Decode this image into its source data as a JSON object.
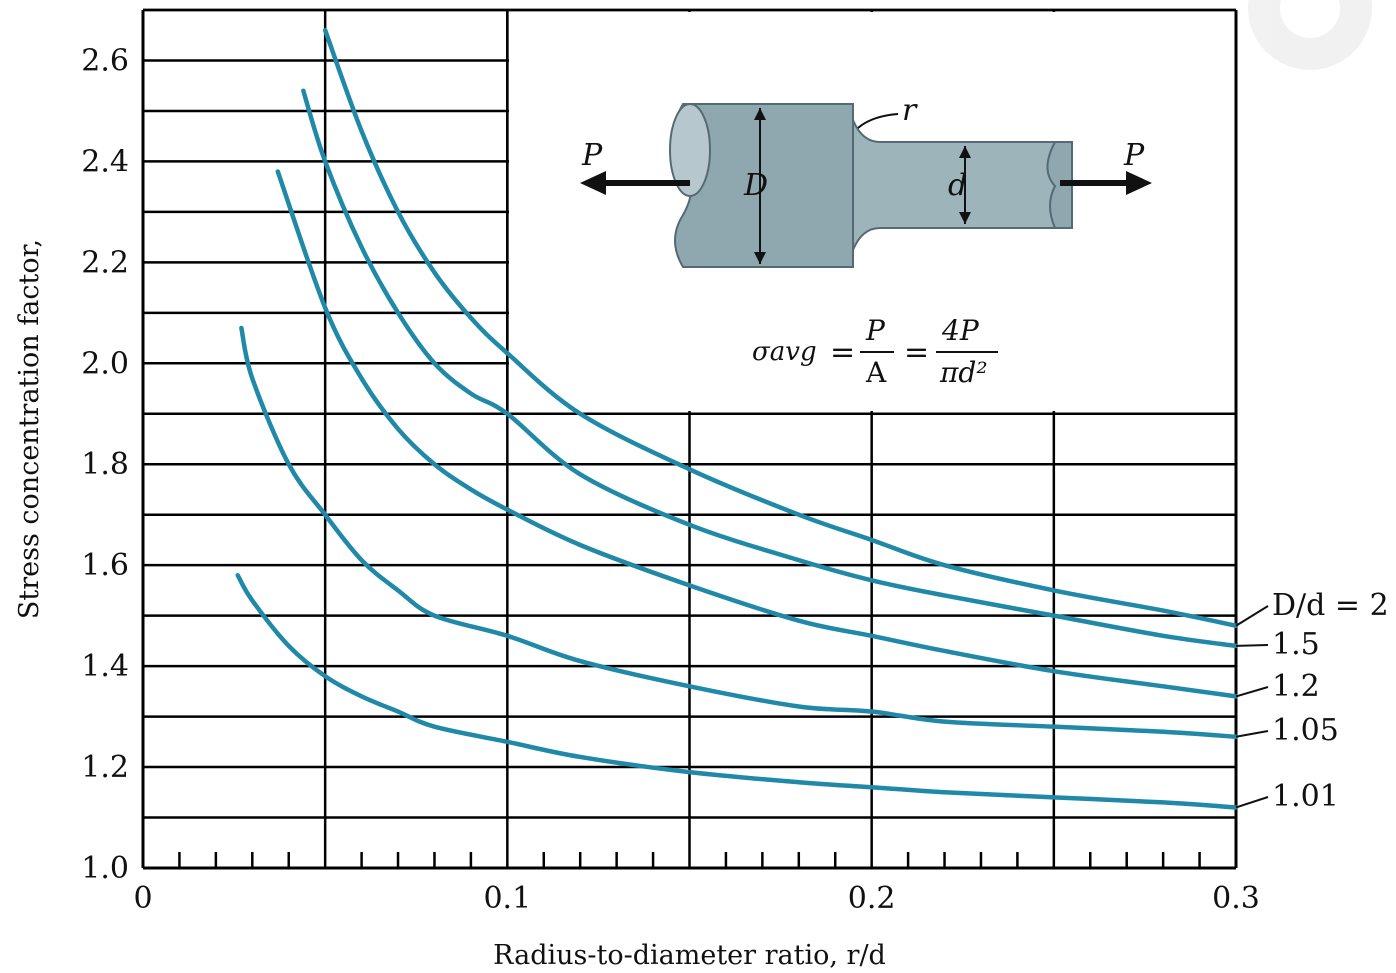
{
  "chart_data": {
    "type": "line",
    "xlabel": "Radius-to-diameter ratio, r/d",
    "ylabel": "Stress concentration factor,",
    "xlim": [
      0,
      0.3
    ],
    "ylim": [
      1.0,
      2.7
    ],
    "x_ticks": [
      "0",
      "0.1",
      "0.2",
      "0.3"
    ],
    "y_ticks": [
      "1.0",
      "1.2",
      "1.4",
      "1.6",
      "1.8",
      "2.0",
      "2.2",
      "2.4",
      "2.6"
    ],
    "grid": true,
    "series": [
      {
        "name": "D/d = 2",
        "x": [
          0.05,
          0.06,
          0.07,
          0.08,
          0.09,
          0.1,
          0.12,
          0.15,
          0.18,
          0.2,
          0.22,
          0.25,
          0.28,
          0.3
        ],
        "y": [
          2.66,
          2.46,
          2.3,
          2.18,
          2.09,
          2.02,
          1.9,
          1.79,
          1.7,
          1.65,
          1.6,
          1.55,
          1.51,
          1.48
        ]
      },
      {
        "name": "1.5",
        "x": [
          0.044,
          0.05,
          0.06,
          0.07,
          0.08,
          0.09,
          0.1,
          0.12,
          0.15,
          0.18,
          0.2,
          0.22,
          0.25,
          0.28,
          0.3
        ],
        "y": [
          2.54,
          2.4,
          2.23,
          2.1,
          2.0,
          1.94,
          1.9,
          1.78,
          1.68,
          1.61,
          1.57,
          1.54,
          1.5,
          1.46,
          1.44
        ]
      },
      {
        "name": "1.2",
        "x": [
          0.037,
          0.05,
          0.06,
          0.07,
          0.08,
          0.09,
          0.1,
          0.12,
          0.15,
          0.18,
          0.2,
          0.22,
          0.25,
          0.28,
          0.3
        ],
        "y": [
          2.38,
          2.11,
          1.97,
          1.87,
          1.8,
          1.75,
          1.71,
          1.64,
          1.56,
          1.49,
          1.46,
          1.43,
          1.39,
          1.36,
          1.34
        ]
      },
      {
        "name": "1.05",
        "x": [
          0.027,
          0.03,
          0.04,
          0.05,
          0.06,
          0.07,
          0.08,
          0.1,
          0.12,
          0.15,
          0.18,
          0.2,
          0.22,
          0.25,
          0.28,
          0.3
        ],
        "y": [
          2.07,
          1.97,
          1.8,
          1.7,
          1.61,
          1.55,
          1.5,
          1.46,
          1.41,
          1.36,
          1.32,
          1.31,
          1.29,
          1.28,
          1.27,
          1.26
        ]
      },
      {
        "name": "1.01",
        "x": [
          0.026,
          0.03,
          0.04,
          0.05,
          0.06,
          0.07,
          0.08,
          0.1,
          0.12,
          0.15,
          0.18,
          0.2,
          0.22,
          0.25,
          0.28,
          0.3
        ],
        "y": [
          1.58,
          1.53,
          1.44,
          1.38,
          1.34,
          1.31,
          1.28,
          1.25,
          1.22,
          1.19,
          1.17,
          1.16,
          1.15,
          1.14,
          1.13,
          1.12
        ]
      }
    ],
    "colors": {
      "curve": "#2189a8",
      "grid": "#000000",
      "shaft": "#8fa7ae"
    },
    "diagram": {
      "label_P_left": "P",
      "label_P_right": "P",
      "label_D": "D",
      "label_d": "d",
      "label_r": "r",
      "formula_lhs": "σavg",
      "formula_num1": "P",
      "formula_den1": "A",
      "formula_num2": "4P",
      "formula_den2": "πd²"
    }
  }
}
